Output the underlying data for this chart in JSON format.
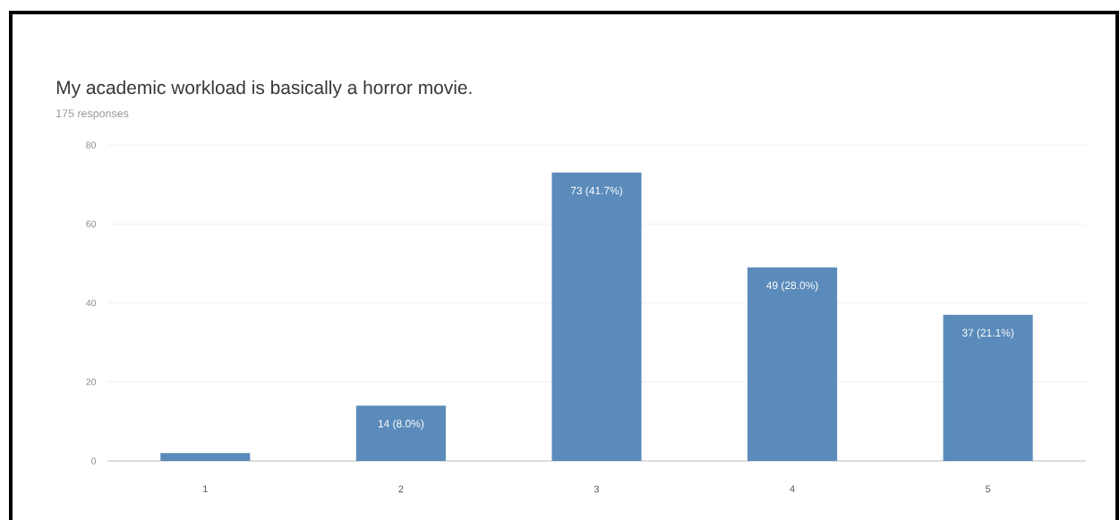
{
  "chart_data": {
    "type": "bar",
    "title": "My academic workload is basically a horror movie.",
    "subtitle": "175 responses",
    "categories": [
      "1",
      "2",
      "3",
      "4",
      "5"
    ],
    "values": [
      2,
      14,
      73,
      49,
      37
    ],
    "value_labels": [
      null,
      "14 (8.0%)",
      "73 (41.7%)",
      "49 (28.0%)",
      "37 (21.1%)"
    ],
    "color": "#5b8bbb",
    "ylim": [
      0,
      80
    ],
    "yticks": [
      0,
      20,
      40,
      60,
      80
    ],
    "grid": "y"
  }
}
